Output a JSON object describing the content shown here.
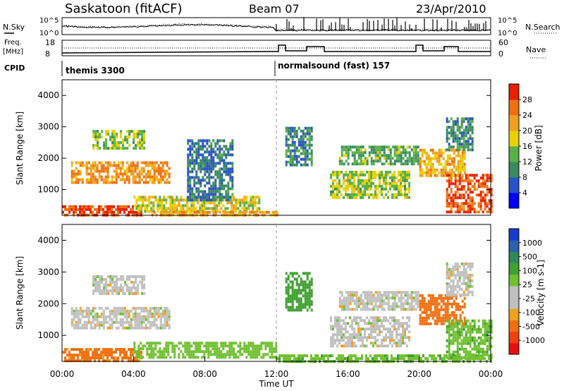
{
  "header": {
    "station": "Saskatoon (fitACF)",
    "beam": "Beam 07",
    "date": "23/Apr/2010"
  },
  "top_panels": {
    "nsky_label": "N.Sky",
    "nsky_ticks": [
      "10^5",
      "10^0"
    ],
    "nsearch_label": "N.Search",
    "nsearch_ticks": [
      "10^5",
      "10^0"
    ],
    "freq_label_1": "Freq.",
    "freq_label_2": "[MHz]",
    "freq_ticks": [
      "18",
      "8"
    ],
    "nave_label": "Nave",
    "nave_ticks": [
      "60",
      "0"
    ],
    "cpid_label": "CPID",
    "cpid_segments": [
      {
        "name": "themis 3300",
        "start_hour": 0,
        "end_hour": 12
      },
      {
        "name": "normalsound (fast) 157",
        "start_hour": 12,
        "end_hour": 24
      }
    ]
  },
  "colors": {
    "power": [
      "#0000ff",
      "#2a52c8",
      "#3a8a60",
      "#58b048",
      "#e8d000",
      "#f0a020",
      "#f07010",
      "#e82000"
    ],
    "velocity": [
      "#e81010",
      "#f04010",
      "#f07010",
      "#f0a020",
      "#c0c0c0",
      "#c0c0c0",
      "#70c030",
      "#40a030",
      "#308858",
      "#2c60b0",
      "#1a3cc8"
    ]
  },
  "chart_data": [
    {
      "type": "heatmap",
      "title": "Power",
      "ylabel": "Slant Range [km]",
      "yticks": [
        "1000",
        "2000",
        "3000",
        "4000"
      ],
      "ylim": [
        180,
        4500
      ],
      "xlim": [
        0,
        24
      ],
      "colorbar_label": "Power [dB]",
      "colorbar_ticks": [
        "4",
        "8",
        "12",
        "16",
        "20",
        "24",
        "28"
      ],
      "colorbar_range": [
        0,
        30
      ],
      "regions": [
        {
          "t0": 0.0,
          "t1": 4.5,
          "r0": 200,
          "r1": 500,
          "value": 27
        },
        {
          "t0": 0.5,
          "t1": 6.0,
          "r0": 1200,
          "r1": 1900,
          "value": 22
        },
        {
          "t0": 1.7,
          "t1": 4.6,
          "r0": 2300,
          "r1": 2900,
          "value": 14
        },
        {
          "t0": 4.0,
          "t1": 11.0,
          "r0": 300,
          "r1": 800,
          "value": 17
        },
        {
          "t0": 5.0,
          "t1": 12.0,
          "r0": 180,
          "r1": 320,
          "value": 21
        },
        {
          "t0": 7.0,
          "t1": 9.5,
          "r0": 700,
          "r1": 2600,
          "value": 8
        },
        {
          "t0": 12.5,
          "t1": 14.0,
          "r0": 1800,
          "r1": 3000,
          "value": 9
        },
        {
          "t0": 15.0,
          "t1": 19.5,
          "r0": 700,
          "r1": 1600,
          "value": 15
        },
        {
          "t0": 15.5,
          "t1": 20.0,
          "r0": 1800,
          "r1": 2400,
          "value": 12
        },
        {
          "t0": 20.0,
          "t1": 22.5,
          "r0": 1400,
          "r1": 2300,
          "value": 20
        },
        {
          "t0": 21.5,
          "t1": 24.0,
          "r0": 300,
          "r1": 1500,
          "value": 26
        },
        {
          "t0": 21.5,
          "t1": 23.0,
          "r0": 2300,
          "r1": 3300,
          "value": 10
        }
      ]
    },
    {
      "type": "heatmap",
      "title": "Velocity",
      "ylabel": "Slant Range [km]",
      "yticks": [
        "1000",
        "2000",
        "3000",
        "4000"
      ],
      "ylim": [
        180,
        4500
      ],
      "xlim": [
        0,
        24
      ],
      "xticks": [
        "00:00",
        "04:00",
        "08:00",
        "12:00",
        "16:00",
        "20:00",
        "00:00"
      ],
      "xlabel": "Time UT",
      "colorbar_label": "Velocity [m s-1]",
      "colorbar_ticks": [
        "-1000",
        "-500",
        "-100",
        "-25",
        "25",
        "100",
        "500",
        "1000"
      ],
      "colorbar_range": [
        -1000,
        1000
      ],
      "regions": [
        {
          "t0": 0.0,
          "t1": 4.5,
          "r0": 200,
          "r1": 600,
          "value": -120
        },
        {
          "t0": 0.5,
          "t1": 6.0,
          "r0": 1200,
          "r1": 1900,
          "value": 0
        },
        {
          "t0": 1.7,
          "t1": 4.6,
          "r0": 2300,
          "r1": 2900,
          "value": 0
        },
        {
          "t0": 4.0,
          "t1": 12.0,
          "r0": 300,
          "r1": 800,
          "value": 60
        },
        {
          "t0": 12.0,
          "t1": 24.0,
          "r0": 180,
          "r1": 400,
          "value": 80
        },
        {
          "t0": 12.5,
          "t1": 14.0,
          "r0": 1800,
          "r1": 3000,
          "value": 200
        },
        {
          "t0": 15.0,
          "t1": 19.5,
          "r0": 700,
          "r1": 1600,
          "value": 0
        },
        {
          "t0": 15.5,
          "t1": 20.0,
          "r0": 1800,
          "r1": 2400,
          "value": 0
        },
        {
          "t0": 20.0,
          "t1": 22.5,
          "r0": 1400,
          "r1": 2300,
          "value": -150
        },
        {
          "t0": 21.5,
          "t1": 24.0,
          "r0": 300,
          "r1": 1500,
          "value": 80
        },
        {
          "t0": 21.5,
          "t1": 23.0,
          "r0": 2300,
          "r1": 3300,
          "value": 0
        }
      ]
    }
  ]
}
